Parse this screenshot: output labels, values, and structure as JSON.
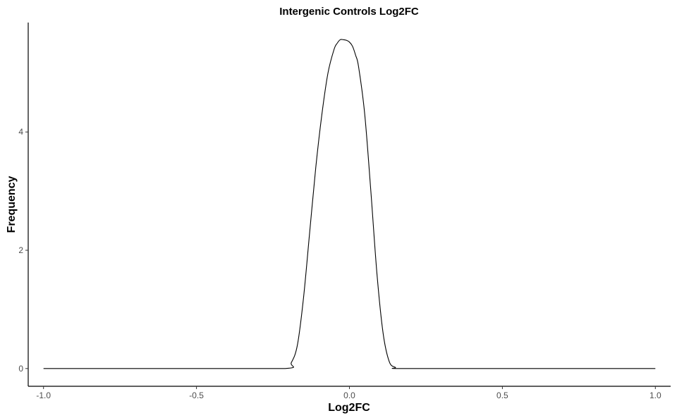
{
  "chart_data": {
    "type": "line",
    "title": "Intergenic Controls Log2FC",
    "xlabel": "Log2FC",
    "ylabel": "Frequency",
    "xlim": [
      -1.05,
      1.05
    ],
    "ylim": [
      -0.3,
      5.85
    ],
    "grid": false,
    "legend": "none",
    "x_ticks": [
      {
        "value": -1.0,
        "label": "-1.0"
      },
      {
        "value": -0.5,
        "label": "-0.5"
      },
      {
        "value": 0.0,
        "label": "0.0"
      },
      {
        "value": 0.5,
        "label": "0.5"
      },
      {
        "value": 1.0,
        "label": "1.0"
      }
    ],
    "y_ticks": [
      {
        "value": 0,
        "label": "0"
      },
      {
        "value": 2,
        "label": "2"
      },
      {
        "value": 4,
        "label": "4"
      }
    ],
    "series": [
      {
        "line_color": "#000000",
        "x": [
          -1.0,
          -0.5,
          -0.21,
          -0.19,
          -0.17,
          -0.15,
          -0.13,
          -0.11,
          -0.09,
          -0.07,
          -0.05,
          -0.04,
          -0.03,
          -0.02,
          -0.01,
          0.0,
          0.01,
          0.02,
          0.03,
          0.05,
          0.07,
          0.09,
          0.11,
          0.13,
          0.15,
          0.17,
          0.5,
          1.0
        ],
        "y": [
          0,
          0,
          0,
          0.1,
          0.4,
          1.2,
          2.3,
          3.4,
          4.3,
          5.0,
          5.4,
          5.5,
          5.56,
          5.56,
          5.55,
          5.52,
          5.45,
          5.3,
          5.1,
          4.3,
          3.0,
          1.6,
          0.6,
          0.12,
          0.02,
          0,
          0,
          0
        ]
      }
    ]
  }
}
